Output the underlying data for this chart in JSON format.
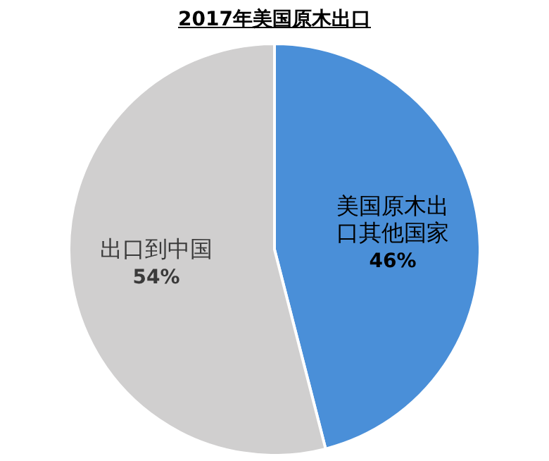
{
  "chart_data": {
    "type": "pie",
    "title": "2017年美国原木出口",
    "categories": [
      "美国原木出口其他国家",
      "出口到中国"
    ],
    "values": [
      46,
      54
    ],
    "colors": [
      "#4a8fd8",
      "#d0cfcf"
    ],
    "value_labels": [
      "46%",
      "54%"
    ]
  }
}
